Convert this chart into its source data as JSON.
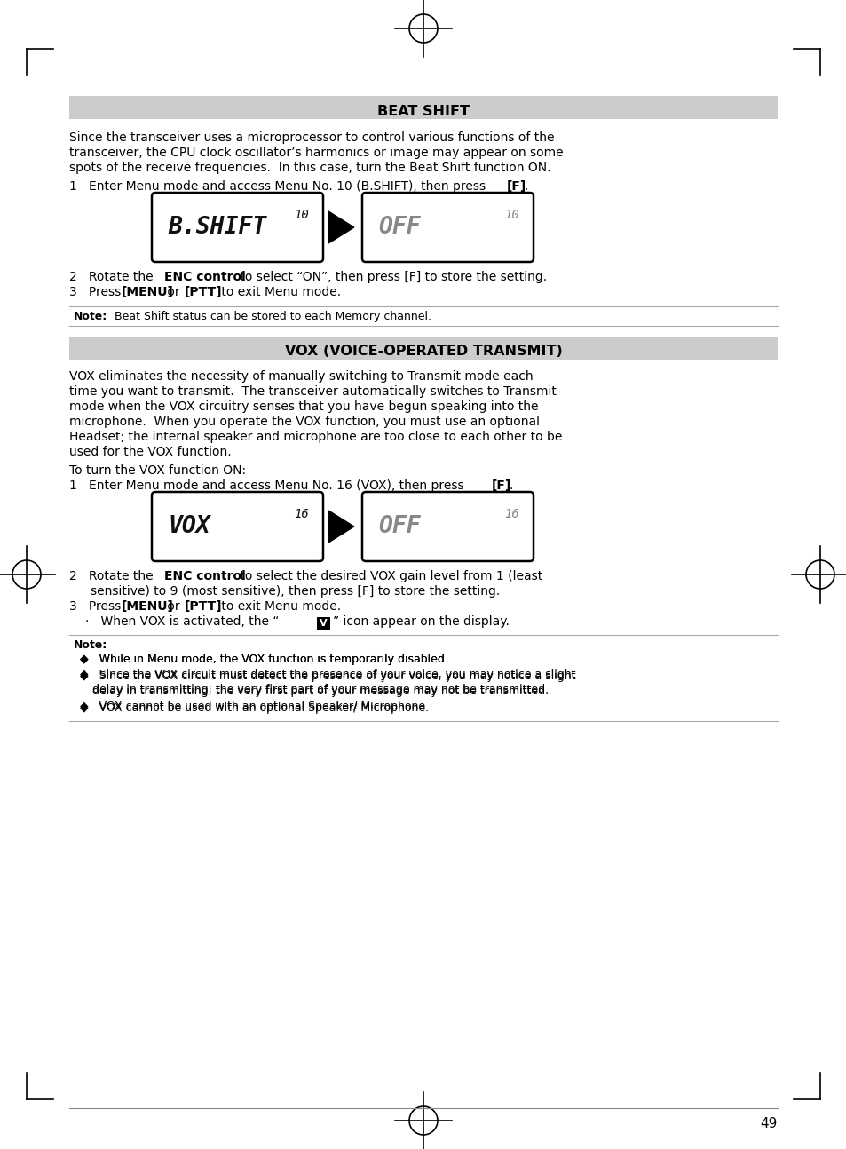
{
  "page_bg": "#ffffff",
  "page_number": "49",
  "section1_title": "BEAT SHIFT",
  "section1_title_bg": "#cccccc",
  "para1_lines": [
    "Since the transceiver uses a microprocessor to control various functions of the",
    "transceiver, the CPU clock oscillator’s harmonics or image may appear on some",
    "spots of the receive frequencies.  In this case, turn the Beat Shift function ON."
  ],
  "lcd1_left_text": "B.SHIFT",
  "lcd1_left_num": "10",
  "lcd1_right_text": "OFF",
  "lcd1_right_num": "10",
  "note1_text": "Beat Shift status can be stored to each Memory channel.",
  "section2_title": "VOX (VOICE-OPERATED TRANSMIT)",
  "section2_title_bg": "#cccccc",
  "para2_lines": [
    "VOX eliminates the necessity of manually switching to Transmit mode each",
    "time you want to transmit.  The transceiver automatically switches to Transmit",
    "mode when the VOX circuitry senses that you have begun speaking into the",
    "microphone.  When you operate the VOX function, you must use an optional",
    "Headset; the internal speaker and microphone are too close to each other to be",
    "used for the VOX function."
  ],
  "lcd2_left_text": "VOX",
  "lcd2_left_num": "16",
  "lcd2_right_text": "OFF",
  "lcd2_right_num": "16",
  "note2_bullets": [
    "While in Menu mode, the VOX function is temporarily disabled.",
    "Since the VOX circuit must detect the presence of your voice, you may notice a slight\n    delay in transmitting; the very first part of your message may not be transmitted.",
    "VOX cannot be used with an optional Speaker/ Microphone."
  ],
  "lcd_border": "#000000",
  "lcd_active_color": "#111111",
  "lcd_inactive_color": "#888888",
  "lcd_bg": "#ffffff",
  "body_color": "#000000",
  "note_line_color": "#aaaaaa",
  "section_bg": "#cccccc",
  "lmargin": 78,
  "rmargin": 876,
  "indent1": 100,
  "fs_body": 10.0,
  "fs_section": 11.5,
  "fs_lcd_main": 19,
  "fs_lcd_num": 10,
  "fs_note": 9.0,
  "lh": 17
}
